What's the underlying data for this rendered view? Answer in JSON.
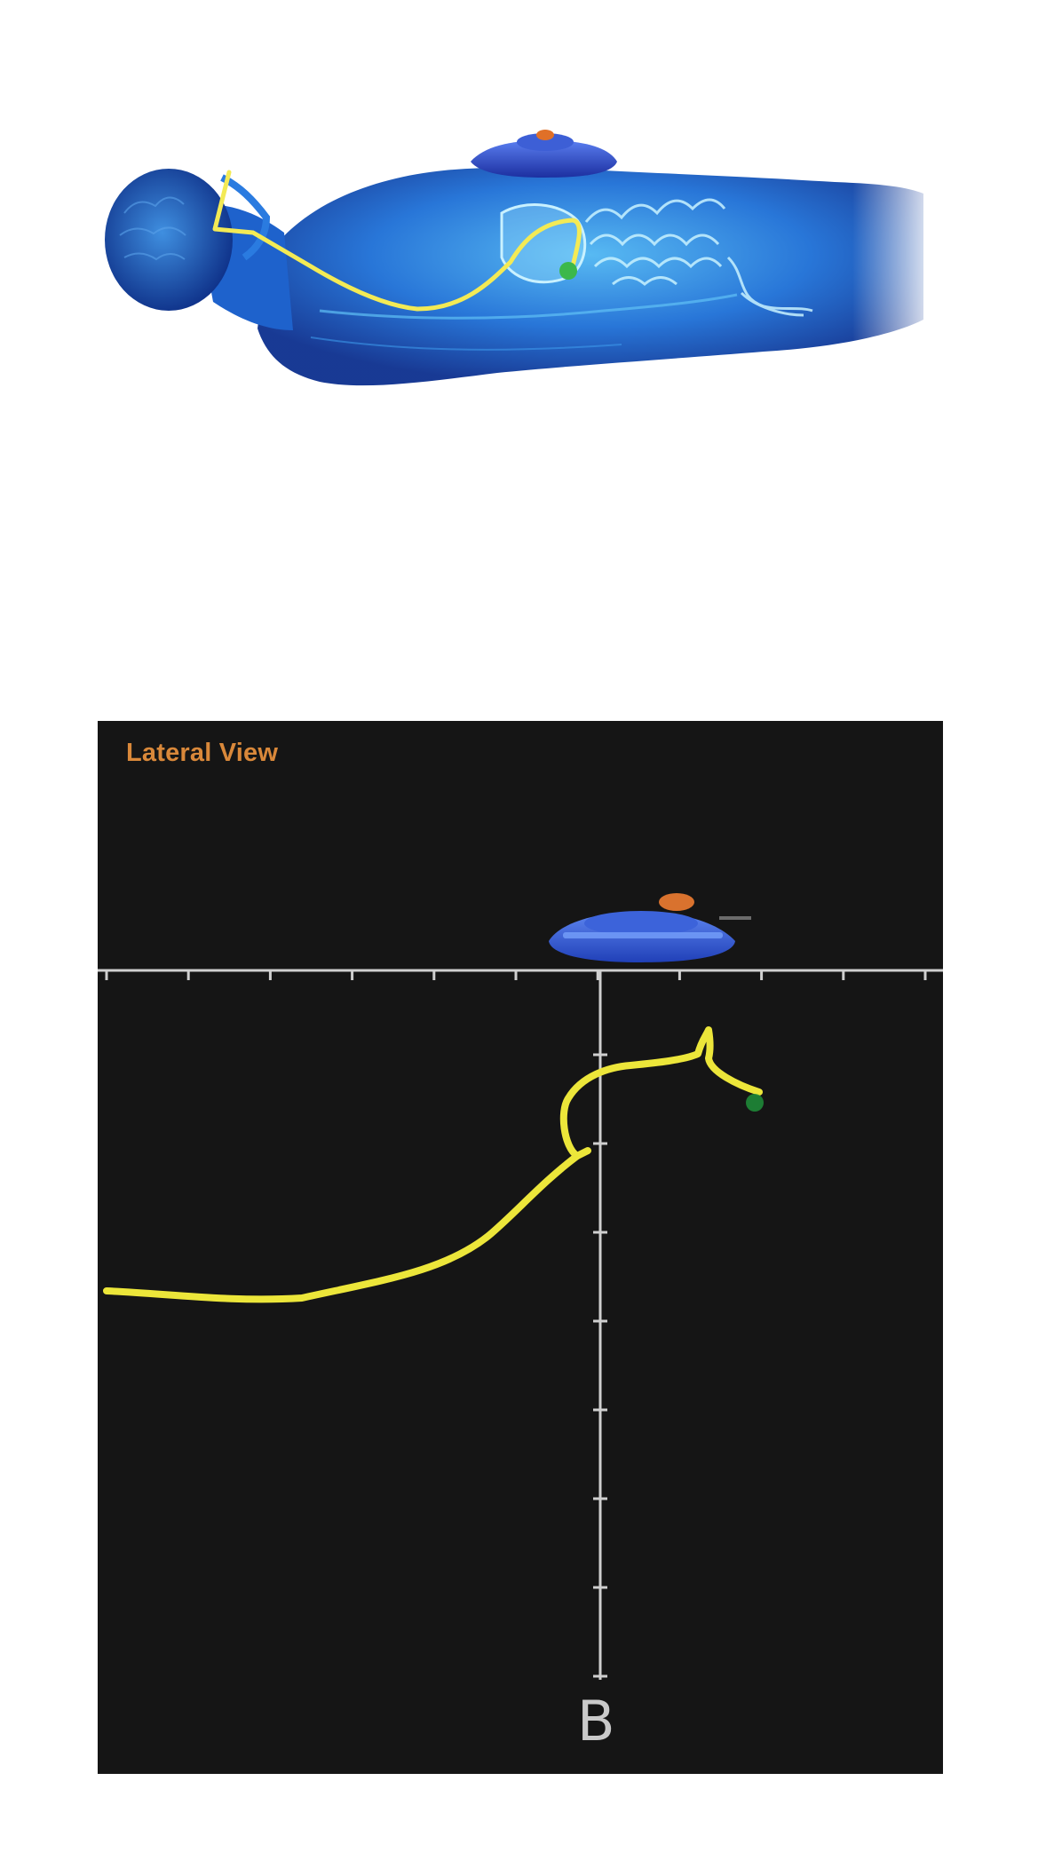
{
  "lateral_view": {
    "title": "Lateral View",
    "panel_label": "B",
    "horizontal_ticks": 11,
    "vertical_ticks": 8
  },
  "colors": {
    "body_blue": "#1a5fd0",
    "tube_yellow": "#f4ec3a",
    "tip_green": "#3cb84a",
    "receiver_blue": "#2e5ad8",
    "receiver_orange": "#e07028",
    "panel_bg": "#151515",
    "axis_grey": "#cfcfcf"
  }
}
